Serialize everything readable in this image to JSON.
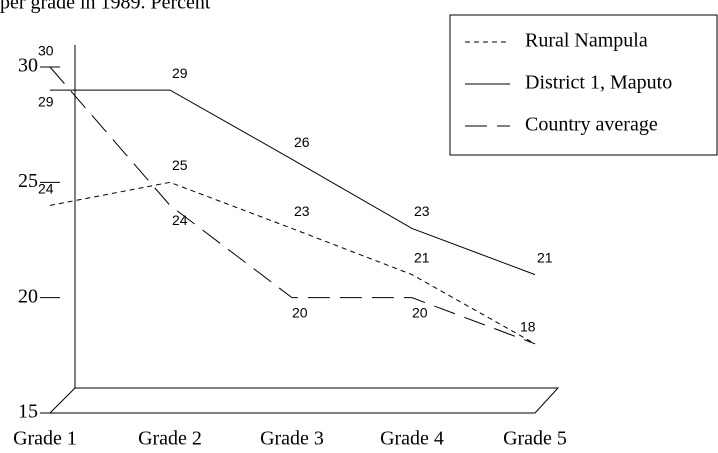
{
  "chart_data": {
    "type": "line",
    "title": "per grade in 1989. Percent",
    "categories": [
      "Grade 1",
      "Grade 2",
      "Grade 3",
      "Grade 4",
      "Grade 5"
    ],
    "series": [
      {
        "name": "Rural Nampula",
        "color": "#000000",
        "dash": "5,4",
        "values": [
          24,
          25,
          23,
          21,
          18
        ]
      },
      {
        "name": "District 1, Maputo",
        "color": "#000000",
        "dash": "none",
        "values": [
          29,
          29,
          26,
          23,
          21
        ]
      },
      {
        "name": "Country average",
        "color": "#000000",
        "dash": "22,10",
        "values": [
          30,
          24,
          20,
          20,
          18
        ]
      }
    ],
    "ylim": [
      15,
      30
    ],
    "yticks": [
      15,
      20,
      25,
      30
    ],
    "grid": false,
    "legend": "upper right"
  }
}
